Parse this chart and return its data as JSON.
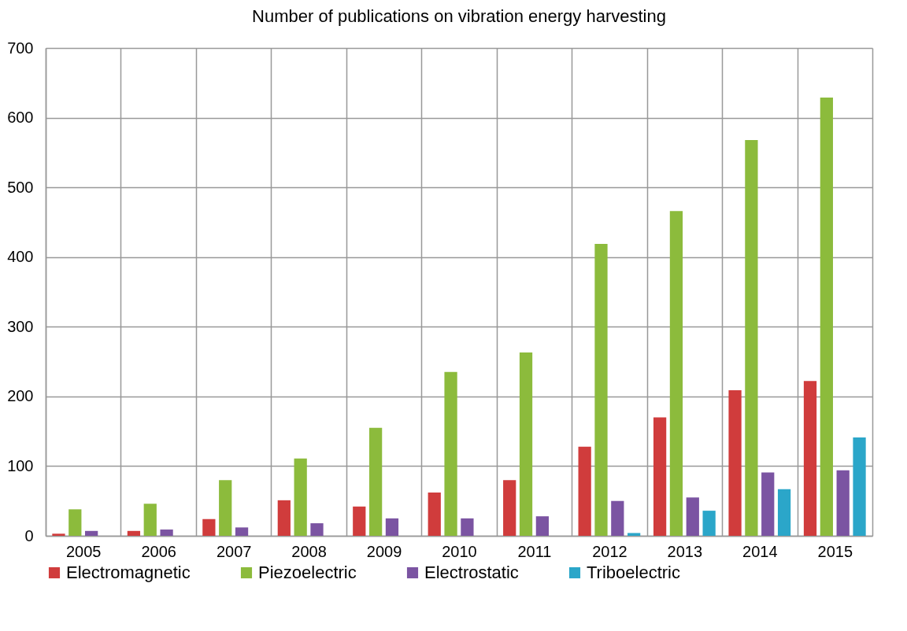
{
  "chart_data": {
    "type": "bar",
    "title": "Number of publications on vibration energy harvesting",
    "categories": [
      "2005",
      "2006",
      "2007",
      "2008",
      "2009",
      "2010",
      "2011",
      "2012",
      "2013",
      "2014",
      "2015"
    ],
    "series": [
      {
        "name": "Electromagnetic",
        "color": "#d03c3c",
        "values": [
          3,
          7,
          24,
          51,
          42,
          62,
          80,
          128,
          170,
          209,
          222
        ]
      },
      {
        "name": "Piezoelectric",
        "color": "#8cbb3c",
        "values": [
          38,
          46,
          80,
          111,
          155,
          235,
          263,
          419,
          466,
          568,
          629
        ]
      },
      {
        "name": "Electrostatic",
        "color": "#7b54a2",
        "values": [
          7,
          9,
          12,
          18,
          25,
          25,
          28,
          50,
          55,
          91,
          94
        ]
      },
      {
        "name": "Triboelectric",
        "color": "#2ba6c9",
        "values": [
          0,
          0,
          0,
          0,
          0,
          0,
          0,
          4,
          36,
          67,
          141
        ]
      }
    ],
    "ylim": [
      0,
      700
    ],
    "yticks": [
      0,
      100,
      200,
      300,
      400,
      500,
      600,
      700
    ],
    "grid": true,
    "legend": "bottom"
  }
}
